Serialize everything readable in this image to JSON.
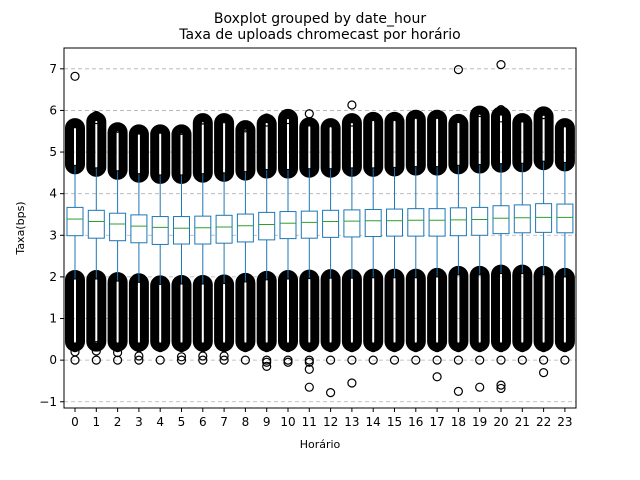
{
  "chart_data": {
    "type": "boxplot",
    "suptitle": "Boxplot grouped by date_hour",
    "title": "Taxa de uploads chromecast por horário",
    "xlabel": "Horário",
    "ylabel": "Taxa(bps)",
    "ylim": [
      -1.15,
      7.5
    ],
    "yticks": [
      -1,
      0,
      1,
      2,
      3,
      4,
      5,
      6,
      7
    ],
    "grid": "y-dashed",
    "colors": {
      "box": "#1f77b4",
      "median": "#2ca02c",
      "outlier": "#000000",
      "grid": "#b0b0b0"
    },
    "categories": [
      "0",
      "1",
      "2",
      "3",
      "4",
      "5",
      "6",
      "7",
      "8",
      "9",
      "10",
      "11",
      "12",
      "13",
      "14",
      "15",
      "16",
      "17",
      "18",
      "19",
      "20",
      "21",
      "22",
      "23"
    ],
    "q1": [
      2.99,
      2.93,
      2.87,
      2.82,
      2.78,
      2.79,
      2.79,
      2.81,
      2.84,
      2.89,
      2.92,
      2.93,
      2.95,
      2.96,
      2.97,
      2.98,
      2.98,
      2.98,
      2.99,
      3.0,
      3.04,
      3.06,
      3.07,
      3.06
    ],
    "median": [
      3.39,
      3.33,
      3.27,
      3.22,
      3.19,
      3.17,
      3.18,
      3.2,
      3.23,
      3.26,
      3.29,
      3.31,
      3.33,
      3.34,
      3.35,
      3.35,
      3.36,
      3.36,
      3.37,
      3.38,
      3.41,
      3.42,
      3.43,
      3.43
    ],
    "q3": [
      3.67,
      3.6,
      3.53,
      3.49,
      3.45,
      3.45,
      3.46,
      3.48,
      3.51,
      3.55,
      3.57,
      3.58,
      3.6,
      3.61,
      3.62,
      3.63,
      3.64,
      3.64,
      3.66,
      3.67,
      3.71,
      3.73,
      3.76,
      3.75
    ],
    "whisker_low": [
      1.95,
      1.95,
      1.9,
      1.87,
      1.82,
      1.83,
      1.83,
      1.84,
      1.88,
      1.93,
      1.95,
      1.96,
      1.97,
      1.97,
      1.98,
      1.98,
      1.98,
      2.0,
      2.05,
      2.05,
      2.08,
      2.08,
      2.05,
      2.0
    ],
    "whisker_high": [
      4.68,
      4.62,
      4.55,
      4.48,
      4.45,
      4.45,
      4.48,
      4.5,
      4.53,
      4.58,
      4.58,
      4.6,
      4.6,
      4.62,
      4.62,
      4.63,
      4.65,
      4.65,
      4.68,
      4.7,
      4.72,
      4.73,
      4.78,
      4.75
    ],
    "outlier_low_band": [
      [
        0.42,
        1.95
      ],
      [
        0.42,
        1.95
      ],
      [
        0.42,
        1.9
      ],
      [
        0.42,
        1.87
      ],
      [
        0.42,
        1.82
      ],
      [
        0.42,
        1.83
      ],
      [
        0.42,
        1.83
      ],
      [
        0.42,
        1.84
      ],
      [
        0.42,
        1.88
      ],
      [
        0.42,
        1.93
      ],
      [
        0.42,
        1.95
      ],
      [
        0.42,
        1.96
      ],
      [
        0.42,
        1.97
      ],
      [
        0.42,
        1.97
      ],
      [
        0.42,
        1.98
      ],
      [
        0.42,
        1.98
      ],
      [
        0.42,
        1.98
      ],
      [
        0.42,
        2.0
      ],
      [
        0.42,
        2.05
      ],
      [
        0.42,
        2.05
      ],
      [
        0.42,
        2.08
      ],
      [
        0.42,
        2.08
      ],
      [
        0.42,
        2.05
      ],
      [
        0.42,
        2.0
      ]
    ],
    "outlier_high_band": [
      [
        4.68,
        5.6
      ],
      [
        4.62,
        5.75
      ],
      [
        4.55,
        5.5
      ],
      [
        4.48,
        5.45
      ],
      [
        4.45,
        5.45
      ],
      [
        4.45,
        5.45
      ],
      [
        4.48,
        5.72
      ],
      [
        4.5,
        5.72
      ],
      [
        4.53,
        5.55
      ],
      [
        4.58,
        5.7
      ],
      [
        4.58,
        5.82
      ],
      [
        4.6,
        5.62
      ],
      [
        4.6,
        5.6
      ],
      [
        4.62,
        5.72
      ],
      [
        4.62,
        5.75
      ],
      [
        4.63,
        5.75
      ],
      [
        4.65,
        5.8
      ],
      [
        4.65,
        5.8
      ],
      [
        4.68,
        5.7
      ],
      [
        4.7,
        5.9
      ],
      [
        4.72,
        5.88
      ],
      [
        4.73,
        5.72
      ],
      [
        4.78,
        5.88
      ],
      [
        4.75,
        5.6
      ]
    ],
    "outliers": [
      [
        0,
        6.82
      ],
      [
        0,
        0.0
      ],
      [
        0,
        0.2
      ],
      [
        0,
        0.3
      ],
      [
        0,
        5.68
      ],
      [
        1,
        5.88
      ],
      [
        1,
        5.78
      ],
      [
        1,
        0.0
      ],
      [
        1,
        0.22
      ],
      [
        1,
        0.35
      ],
      [
        2,
        5.57
      ],
      [
        2,
        0.0
      ],
      [
        2,
        0.18
      ],
      [
        2,
        0.3
      ],
      [
        3,
        5.53
      ],
      [
        3,
        0.0
      ],
      [
        3,
        0.1
      ],
      [
        3,
        0.3
      ],
      [
        4,
        5.55
      ],
      [
        4,
        0.0
      ],
      [
        4,
        0.3
      ],
      [
        5,
        5.52
      ],
      [
        5,
        0.0
      ],
      [
        5,
        0.08
      ],
      [
        5,
        0.3
      ],
      [
        6,
        5.77
      ],
      [
        6,
        0.0
      ],
      [
        6,
        0.1
      ],
      [
        6,
        0.3
      ],
      [
        7,
        5.8
      ],
      [
        7,
        0.0
      ],
      [
        7,
        0.1
      ],
      [
        7,
        0.3
      ],
      [
        8,
        5.62
      ],
      [
        8,
        5.58
      ],
      [
        8,
        0.0
      ],
      [
        8,
        0.3
      ],
      [
        9,
        5.82
      ],
      [
        9,
        5.72
      ],
      [
        9,
        -0.05
      ],
      [
        9,
        -0.15
      ],
      [
        9,
        0.0
      ],
      [
        9,
        0.3
      ],
      [
        10,
        5.9
      ],
      [
        10,
        5.78
      ],
      [
        10,
        0.0
      ],
      [
        10,
        -0.05
      ],
      [
        10,
        0.3
      ],
      [
        11,
        5.92
      ],
      [
        11,
        -0.65
      ],
      [
        11,
        -0.22
      ],
      [
        11,
        -0.05
      ],
      [
        11,
        0.0
      ],
      [
        11,
        0.3
      ],
      [
        12,
        -0.78
      ],
      [
        12,
        0.0
      ],
      [
        12,
        0.3
      ],
      [
        13,
        6.13
      ],
      [
        13,
        5.8
      ],
      [
        13,
        5.72
      ],
      [
        13,
        -0.55
      ],
      [
        13,
        0.0
      ],
      [
        13,
        0.3
      ],
      [
        14,
        0.0
      ],
      [
        14,
        0.3
      ],
      [
        15,
        0.0
      ],
      [
        15,
        0.3
      ],
      [
        16,
        0.0
      ],
      [
        16,
        0.3
      ],
      [
        17,
        -0.4
      ],
      [
        17,
        0.0
      ],
      [
        17,
        0.3
      ],
      [
        18,
        6.98
      ],
      [
        18,
        -0.75
      ],
      [
        18,
        0.0
      ],
      [
        18,
        0.3
      ],
      [
        19,
        5.95
      ],
      [
        19,
        -0.65
      ],
      [
        19,
        0.0
      ],
      [
        19,
        0.3
      ],
      [
        20,
        7.1
      ],
      [
        20,
        6.02
      ],
      [
        20,
        5.82
      ],
      [
        20,
        -0.6
      ],
      [
        20,
        -0.68
      ],
      [
        20,
        0.0
      ],
      [
        20,
        0.3
      ],
      [
        21,
        5.82
      ],
      [
        21,
        0.0
      ],
      [
        21,
        0.3
      ],
      [
        22,
        5.98
      ],
      [
        22,
        5.9
      ],
      [
        22,
        -0.3
      ],
      [
        22,
        0.0
      ],
      [
        22,
        0.3
      ],
      [
        23,
        0.0
      ],
      [
        23,
        0.3
      ]
    ]
  }
}
